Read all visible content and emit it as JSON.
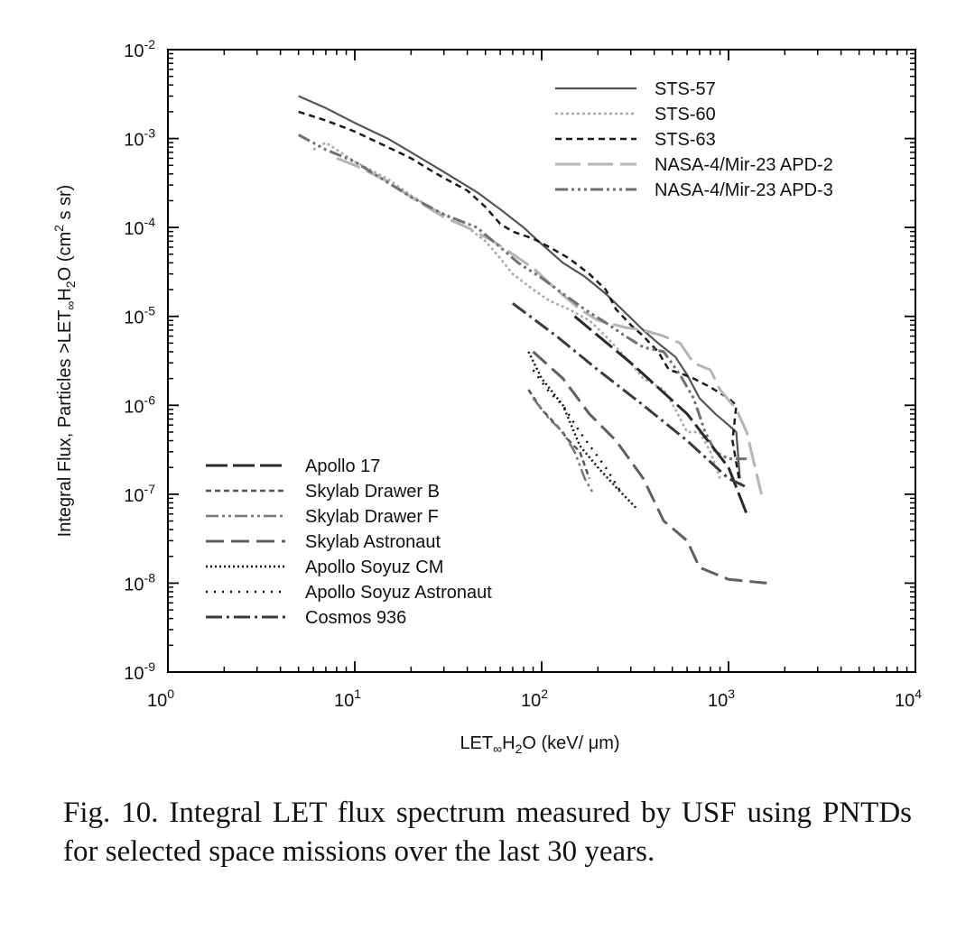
{
  "chart_data": {
    "type": "line",
    "x_scale": "log",
    "y_scale": "log",
    "xlim": [
      1,
      10000
    ],
    "ylim": [
      1e-09,
      0.01
    ],
    "xlabel": {
      "prefix": "LET",
      "sub1": "∞",
      "mid": "H",
      "sub2": "2",
      "suffix": "O (keV/ μm)"
    },
    "ylabel": {
      "prefix": "Integral Flux, Particles >LET",
      "sub1": "∞",
      "mid": "H",
      "sub2": "2",
      "mid2": "O (cm",
      "sup": "2",
      "suffix": " s sr)"
    },
    "x_ticks": [
      {
        "value": 1,
        "base": "10",
        "exp": "0"
      },
      {
        "value": 10,
        "base": "10",
        "exp": "1"
      },
      {
        "value": 100,
        "base": "10",
        "exp": "2"
      },
      {
        "value": 1000,
        "base": "10",
        "exp": "3"
      },
      {
        "value": 10000,
        "base": "10",
        "exp": "4"
      }
    ],
    "y_ticks": [
      {
        "value": 1e-09,
        "base": "10",
        "exp": "-9"
      },
      {
        "value": 1e-08,
        "base": "10",
        "exp": "-8"
      },
      {
        "value": 1e-07,
        "base": "10",
        "exp": "-7"
      },
      {
        "value": 1e-06,
        "base": "10",
        "exp": "-6"
      },
      {
        "value": 1e-05,
        "base": "10",
        "exp": "-5"
      },
      {
        "value": 0.0001,
        "base": "10",
        "exp": "-4"
      },
      {
        "value": 0.001,
        "base": "10",
        "exp": "-3"
      },
      {
        "value": 0.01,
        "base": "10",
        "exp": "-2"
      }
    ],
    "legend_top_right": [
      "STS-57",
      "STS-60",
      "STS-63",
      "NASA-4/Mir-23 APD-2",
      "NASA-4/Mir-23 APD-3"
    ],
    "legend_bottom_left": [
      "Apollo 17",
      "Skylab Drawer B",
      "Skylab Drawer F",
      "Skylab Astronaut",
      "Apollo Soyuz CM",
      "Apollo Soyuz Astronaut",
      "Cosmos 936"
    ],
    "series": [
      {
        "name": "STS-57",
        "color": "#555555",
        "dash": "",
        "width": 2.2,
        "points": [
          [
            5,
            0.003
          ],
          [
            7,
            0.0022
          ],
          [
            10,
            0.0015
          ],
          [
            15,
            0.001
          ],
          [
            20,
            0.0007
          ],
          [
            30,
            0.00042
          ],
          [
            45,
            0.00025
          ],
          [
            60,
            0.00016
          ],
          [
            80,
            0.0001
          ],
          [
            100,
            6.5e-05
          ],
          [
            130,
            4e-05
          ],
          [
            170,
            2.8e-05
          ],
          [
            220,
            1.8e-05
          ],
          [
            280,
            1.1e-05
          ],
          [
            350,
            7e-06
          ],
          [
            420,
            5e-06
          ],
          [
            520,
            3.5e-06
          ],
          [
            600,
            2.2e-06
          ],
          [
            700,
            1.2e-06
          ],
          [
            850,
            8e-07
          ],
          [
            1000,
            6e-07
          ],
          [
            1100,
            5e-07
          ],
          [
            1150,
            1.5e-07
          ]
        ]
      },
      {
        "name": "STS-60",
        "color": "#aaaaaa",
        "dash": "3 3",
        "width": 2.5,
        "points": [
          [
            6,
            0.00075
          ],
          [
            7,
            0.0009
          ],
          [
            8,
            0.00075
          ],
          [
            10,
            0.00055
          ],
          [
            15,
            0.00035
          ],
          [
            20,
            0.00023
          ],
          [
            25,
            0.00017
          ],
          [
            30,
            0.00014
          ],
          [
            40,
            0.0001
          ],
          [
            50,
            7e-05
          ],
          [
            60,
            4.5e-05
          ],
          [
            70,
            3e-05
          ],
          [
            90,
            2e-05
          ],
          [
            110,
            1.5e-05
          ],
          [
            140,
            1.2e-05
          ],
          [
            180,
            9e-06
          ],
          [
            220,
            6e-06
          ],
          [
            280,
            3.5e-06
          ],
          [
            350,
            2e-06
          ],
          [
            450,
            1.5e-06
          ],
          [
            520,
            9e-07
          ],
          [
            600,
            5e-07
          ],
          [
            700,
            5e-07
          ],
          [
            800,
            3e-07
          ],
          [
            900,
            1.5e-07
          ]
        ]
      },
      {
        "name": "STS-63",
        "color": "#1a1a1a",
        "dash": "7 5",
        "width": 2.5,
        "points": [
          [
            5,
            0.002
          ],
          [
            7,
            0.0016
          ],
          [
            10,
            0.0012
          ],
          [
            15,
            0.0008
          ],
          [
            20,
            0.0006
          ],
          [
            25,
            0.00045
          ],
          [
            30,
            0.00036
          ],
          [
            40,
            0.00026
          ],
          [
            50,
            0.00017
          ],
          [
            60,
            0.00011
          ],
          [
            70,
            9e-05
          ],
          [
            90,
            7.5e-05
          ],
          [
            110,
            6e-05
          ],
          [
            140,
            4.5e-05
          ],
          [
            180,
            3e-05
          ],
          [
            220,
            2e-05
          ],
          [
            250,
            1.2e-05
          ],
          [
            300,
            8e-06
          ],
          [
            350,
            6e-06
          ],
          [
            420,
            4e-06
          ],
          [
            480,
            2.5e-06
          ],
          [
            550,
            2.3e-06
          ],
          [
            650,
            2e-06
          ],
          [
            800,
            1.6e-06
          ],
          [
            1000,
            1.2e-06
          ],
          [
            1100,
            1e-06
          ],
          [
            1050,
            4e-07
          ],
          [
            1150,
            1.3e-07
          ]
        ]
      },
      {
        "name": "NASA-4/Mir-23 APD-2",
        "color": "#b5b5b5",
        "dash": "28 8",
        "width": 3,
        "points": [
          [
            8,
            0.0006
          ],
          [
            10,
            0.0005
          ],
          [
            15,
            0.00033
          ],
          [
            20,
            0.00022
          ],
          [
            30,
            0.00013
          ],
          [
            40,
            0.0001
          ],
          [
            55,
            7e-05
          ],
          [
            70,
            5e-05
          ],
          [
            90,
            3.5e-05
          ],
          [
            120,
            2e-05
          ],
          [
            160,
            1.2e-05
          ],
          [
            200,
            9e-06
          ],
          [
            280,
            7.5e-06
          ],
          [
            350,
            7e-06
          ],
          [
            450,
            6e-06
          ],
          [
            550,
            5e-06
          ],
          [
            650,
            3e-06
          ],
          [
            800,
            2.5e-06
          ],
          [
            900,
            1.5e-06
          ],
          [
            1100,
            9e-07
          ],
          [
            1250,
            5e-07
          ],
          [
            1500,
            1e-07
          ]
        ]
      },
      {
        "name": "NASA-4/Mir-23 APD-3",
        "color": "#707070",
        "dash": "14 4 3 4 3 4 3 4",
        "width": 3,
        "points": [
          [
            5,
            0.0011
          ],
          [
            7,
            0.00075
          ],
          [
            10,
            0.00055
          ],
          [
            15,
            0.00032
          ],
          [
            20,
            0.00022
          ],
          [
            30,
            0.00014
          ],
          [
            45,
            0.0001
          ],
          [
            60,
            6e-05
          ],
          [
            75,
            4e-05
          ],
          [
            100,
            2.7e-05
          ],
          [
            130,
            1.8e-05
          ],
          [
            170,
            1.2e-05
          ],
          [
            220,
            8.5e-06
          ],
          [
            280,
            6e-06
          ],
          [
            350,
            4.5e-06
          ],
          [
            450,
            4e-06
          ],
          [
            550,
            2.2e-06
          ],
          [
            650,
            1.2e-06
          ],
          [
            750,
            5e-07
          ],
          [
            850,
            3e-07
          ],
          [
            1000,
            2.5e-07
          ],
          [
            1250,
            2.5e-07
          ]
        ]
      },
      {
        "name": "Apollo 17",
        "color": "#2a2a2a",
        "dash": "24 6",
        "width": 3,
        "points": [
          [
            150,
            1e-05
          ],
          [
            300,
            3e-06
          ],
          [
            600,
            8e-07
          ],
          [
            1000,
            2e-07
          ],
          [
            1250,
            6e-08
          ]
        ]
      },
      {
        "name": "Skylab Drawer B",
        "color": "#555555",
        "dash": "6 4",
        "width": 2.5,
        "points": [
          [
            85,
            1.5e-06
          ],
          [
            100,
            9e-07
          ],
          [
            120,
            6e-07
          ],
          [
            140,
            4e-07
          ],
          [
            160,
            3e-07
          ],
          [
            180,
            1.5e-07
          ]
        ]
      },
      {
        "name": "Skylab Drawer F",
        "color": "#777777",
        "dash": "14 4 3 4 3 4",
        "width": 2.5,
        "points": [
          [
            90,
            1.2e-06
          ],
          [
            110,
            7e-07
          ],
          [
            130,
            5e-07
          ],
          [
            150,
            3e-07
          ],
          [
            170,
            1.5e-07
          ],
          [
            190,
            1e-07
          ]
        ]
      },
      {
        "name": "Skylab Astronaut",
        "color": "#606060",
        "dash": "20 8",
        "width": 3,
        "points": [
          [
            90,
            4e-06
          ],
          [
            130,
            2e-06
          ],
          [
            180,
            8e-07
          ],
          [
            250,
            4e-07
          ],
          [
            350,
            1.5e-07
          ],
          [
            450,
            5e-08
          ],
          [
            600,
            3e-08
          ],
          [
            700,
            1.5e-08
          ],
          [
            1000,
            1.1e-08
          ],
          [
            1600,
            1e-08
          ]
        ]
      },
      {
        "name": "Apollo Soyuz CM",
        "color": "#111111",
        "dash": "2 3",
        "width": 2.5,
        "points": [
          [
            85,
            4e-06
          ],
          [
            100,
            2e-06
          ],
          [
            130,
            1e-06
          ],
          [
            160,
            3.5e-07
          ],
          [
            200,
            2e-07
          ],
          [
            250,
            1.2e-07
          ],
          [
            320,
            7e-08
          ]
        ]
      },
      {
        "name": "Apollo Soyuz Astronaut",
        "color": "#111111",
        "dash": "2 7",
        "width": 2.5,
        "points": [
          [
            90,
            2.5e-06
          ],
          [
            110,
            1.4e-06
          ],
          [
            130,
            1e-06
          ],
          [
            160,
            5e-07
          ],
          [
            220,
            2e-07
          ],
          [
            270,
            1e-07
          ]
        ]
      },
      {
        "name": "Cosmos 936",
        "color": "#3a3a3a",
        "dash": "18 5 3 5",
        "width": 3,
        "points": [
          [
            70,
            1.4e-05
          ],
          [
            120,
            6e-06
          ],
          [
            200,
            2.5e-06
          ],
          [
            350,
            1e-06
          ],
          [
            600,
            4e-07
          ],
          [
            1000,
            1.5e-07
          ],
          [
            1250,
            1.2e-07
          ]
        ]
      }
    ]
  },
  "caption": "Fig. 10. Integral LET flux spectrum measured by USF using PNTDs for selected space missions over the last 30 years."
}
